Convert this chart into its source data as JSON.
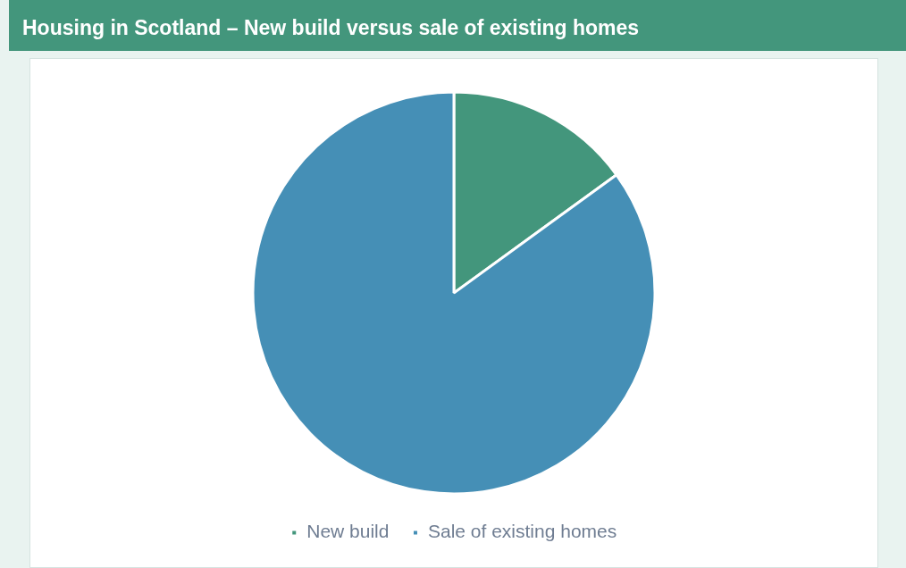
{
  "chart_data": {
    "type": "pie",
    "title": "Housing in Scotland – New build versus sale of existing homes",
    "categories": [
      "New build",
      "Sale of existing homes"
    ],
    "values": [
      15,
      85
    ],
    "colors": [
      "#43967c",
      "#458fb6"
    ],
    "legend": "bottom"
  }
}
